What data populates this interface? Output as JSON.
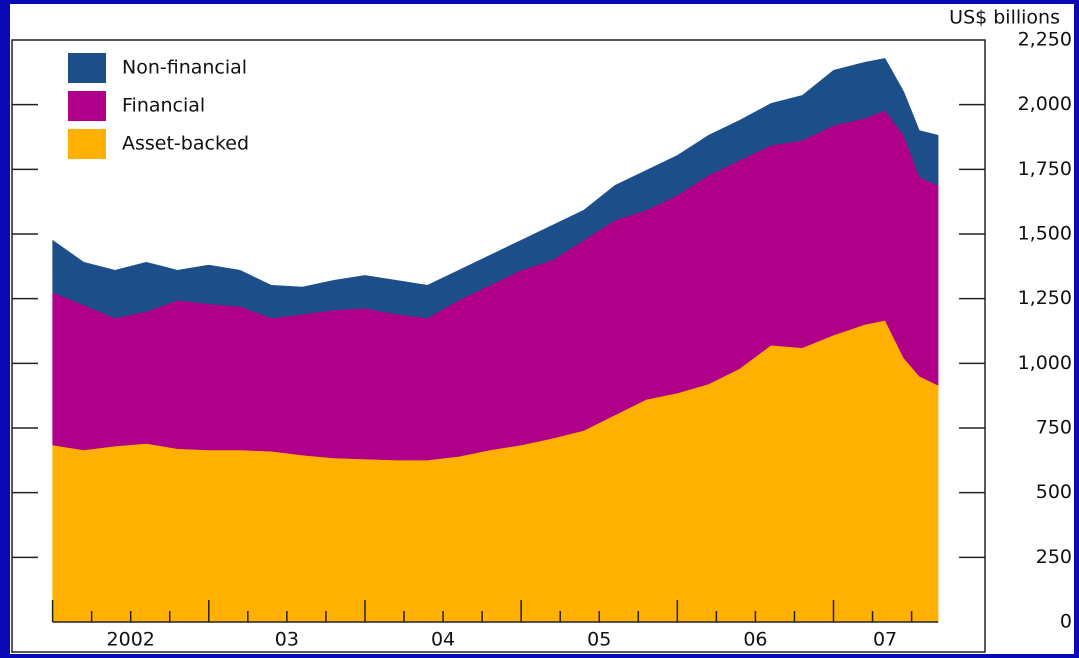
{
  "chart_data": {
    "type": "stacked-area",
    "y_axis_label": "US$ billions",
    "x": [
      2002.0,
      2002.2,
      2002.4,
      2002.6,
      2002.8,
      2003.0,
      2003.2,
      2003.4,
      2003.6,
      2003.8,
      2004.0,
      2004.2,
      2004.4,
      2004.6,
      2004.8,
      2005.0,
      2005.2,
      2005.4,
      2005.6,
      2005.8,
      2006.0,
      2006.2,
      2006.4,
      2006.6,
      2006.8,
      2007.0,
      2007.2,
      2007.33,
      2007.45,
      2007.55,
      2007.67
    ],
    "series": [
      {
        "name": "Asset-backed",
        "color": "#ffb000",
        "values": [
          684,
          665,
          680,
          690,
          670,
          665,
          665,
          660,
          645,
          634,
          630,
          626,
          626,
          640,
          665,
          684,
          710,
          740,
          800,
          860,
          885,
          920,
          980,
          1070,
          1060,
          1109,
          1150,
          1166,
          1020,
          950,
          915
        ]
      },
      {
        "name": "Financial",
        "color": "#b0008a",
        "values": [
          591,
          560,
          495,
          510,
          574,
          565,
          555,
          515,
          545,
          572,
          583,
          564,
          549,
          604,
          637,
          676,
          689,
          736,
          753,
          732,
          765,
          807,
          805,
          773,
          802,
          811,
          797,
          812,
          860,
          770,
          773
        ]
      },
      {
        "name": "Non-financial",
        "color": "#1c4f8a",
        "values": [
          201,
          166,
          185,
          191,
          116,
          150,
          140,
          127,
          105,
          115,
          127,
          131,
          127,
          116,
          116,
          116,
          135,
          116,
          135,
          154,
          154,
          155,
          155,
          162,
          174,
          213,
          217,
          201,
          170,
          180,
          194
        ]
      }
    ],
    "xlim": [
      2001.74,
      2007.97
    ],
    "xticks": [
      {
        "value": 2002.5,
        "label": "2002"
      },
      {
        "value": 2003.5,
        "label": "03"
      },
      {
        "value": 2004.5,
        "label": "04"
      },
      {
        "value": 2005.5,
        "label": "05"
      },
      {
        "value": 2006.5,
        "label": "06"
      },
      {
        "value": 2007.33,
        "label": "07"
      }
    ],
    "ylim": [
      0,
      2250
    ],
    "yticks": [
      0,
      250,
      500,
      750,
      {
        "value": 1000,
        "label": "1,000"
      },
      {
        "value": 1250,
        "label": "1,250"
      },
      {
        "value": 1500,
        "label": "1,500"
      },
      {
        "value": 1750,
        "label": "1,750"
      },
      {
        "value": 2000,
        "label": "2,000"
      },
      {
        "value": 2250,
        "label": "2,250"
      }
    ],
    "legend": "top-left"
  }
}
